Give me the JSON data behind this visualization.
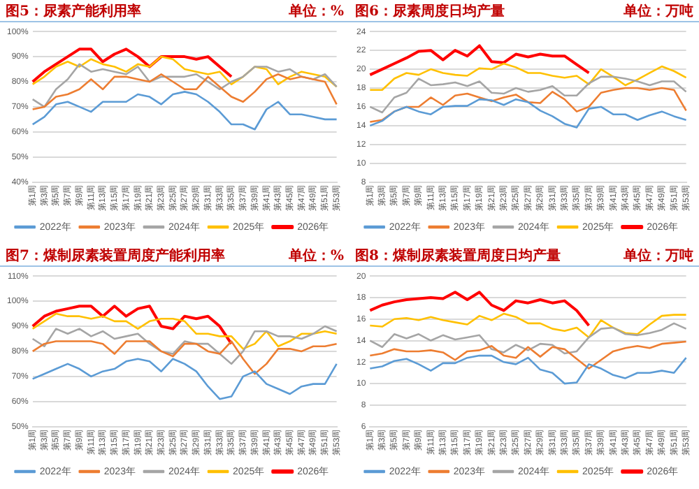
{
  "chart_data": [
    {
      "type": "line",
      "title": "图5：尿素产能利用率",
      "subtitle": "单位：%",
      "categories": [
        "第1周",
        "第3周",
        "第5周",
        "第7周",
        "第9周",
        "第11周",
        "第13周",
        "第15周",
        "第17周",
        "第19周",
        "第21周",
        "第23周",
        "第25周",
        "第27周",
        "第29周",
        "第31周",
        "第33周",
        "第35周",
        "第37周",
        "第39周",
        "第41周",
        "第43周",
        "第45周",
        "第47周",
        "第49周",
        "第51周",
        "第53周"
      ],
      "series": [
        {
          "name": "2022年",
          "color": "#5b9bd5",
          "values": [
            63,
            66,
            71,
            72,
            70,
            68,
            72,
            72,
            72,
            75,
            74,
            71,
            75,
            76,
            75,
            72,
            68,
            63,
            63,
            61,
            69,
            72,
            67,
            67,
            66,
            65,
            65
          ]
        },
        {
          "name": "2023年",
          "color": "#ed7d31",
          "values": [
            69,
            70,
            74,
            75,
            77,
            81,
            77,
            82,
            82,
            81,
            80,
            83,
            80,
            77,
            77,
            82,
            78,
            74,
            72,
            76,
            81,
            83,
            81,
            82,
            81,
            80,
            71
          ]
        },
        {
          "name": "2024年",
          "color": "#a5a5a5",
          "values": [
            73,
            70,
            77,
            81,
            87,
            84,
            85,
            84,
            83,
            86,
            80,
            82,
            82,
            82,
            83,
            80,
            77,
            80,
            82,
            86,
            86,
            84,
            85,
            82,
            81,
            83,
            78
          ]
        },
        {
          "name": "2025年",
          "color": "#ffc000",
          "values": [
            79,
            82,
            86,
            88,
            86,
            89,
            87,
            86,
            84,
            87,
            86,
            90,
            89,
            85,
            84,
            83,
            84,
            79,
            82,
            86,
            85,
            79,
            82,
            84,
            83,
            82,
            78
          ]
        },
        {
          "name": "2026年",
          "color": "#ff0000",
          "values": [
            80,
            84,
            87,
            90,
            93,
            93,
            88,
            91,
            93,
            90,
            86,
            90,
            90,
            90,
            89,
            90,
            86,
            82,
            null,
            null,
            null,
            null,
            null,
            null,
            null,
            null,
            null
          ]
        }
      ],
      "ylim": [
        40,
        100
      ],
      "yticks": [
        {
          "value": 40,
          "label": "40%"
        },
        {
          "value": 50,
          "label": "50%"
        },
        {
          "value": 60,
          "label": "60%"
        },
        {
          "value": 70,
          "label": "70%"
        },
        {
          "value": 80,
          "label": "80%"
        },
        {
          "value": 90,
          "label": "90%"
        },
        {
          "value": 100,
          "label": "100%"
        }
      ],
      "grid": "y",
      "legend": "bottom",
      "marker": "none",
      "line_style": "solid"
    },
    {
      "type": "line",
      "title": "图6：尿素周度日均产量",
      "subtitle": "单位：万吨",
      "categories": [
        "第1周",
        "第3周",
        "第5周",
        "第7周",
        "第9周",
        "第11周",
        "第13周",
        "第15周",
        "第17周",
        "第19周",
        "第21周",
        "第23周",
        "第25周",
        "第27周",
        "第29周",
        "第31周",
        "第33周",
        "第35周",
        "第37周",
        "第39周",
        "第41周",
        "第43周",
        "第45周",
        "第47周",
        "第49周",
        "第51周",
        "第53周"
      ],
      "series": [
        {
          "name": "2022年",
          "color": "#5b9bd5",
          "values": [
            14,
            14.5,
            15.5,
            16,
            15.5,
            15.2,
            16,
            16.1,
            16.1,
            16.8,
            16.7,
            16.2,
            16.8,
            16.5,
            15.6,
            15,
            14.2,
            13.8,
            15.8,
            16,
            15.2,
            15.2,
            14.6,
            15.1,
            15.5,
            15,
            14.6
          ]
        },
        {
          "name": "2023年",
          "color": "#ed7d31",
          "values": [
            14.4,
            14.6,
            15.5,
            16,
            16,
            17,
            16.2,
            17.2,
            17.4,
            17,
            16.6,
            17,
            17.3,
            16.5,
            16.4,
            17.6,
            16.8,
            15.5,
            16,
            17.5,
            17.8,
            18,
            18,
            17.8,
            18,
            17.8,
            15.6
          ]
        },
        {
          "name": "2024年",
          "color": "#a5a5a5",
          "values": [
            16,
            15.4,
            17,
            17.5,
            19,
            18.3,
            18.4,
            18.6,
            18.2,
            18.7,
            17.5,
            17.4,
            18,
            17.6,
            17.8,
            18.2,
            17.2,
            17.2,
            18.5,
            19.2,
            19.2,
            19,
            18.7,
            18.3,
            18.7,
            18.7,
            17.6
          ]
        },
        {
          "name": "2025年",
          "color": "#ffc000",
          "values": [
            17.8,
            17.8,
            19,
            19.6,
            19.4,
            20,
            19.6,
            19.4,
            19.3,
            20.1,
            20,
            20.6,
            20.2,
            19.6,
            19.6,
            19.3,
            19.1,
            19.3,
            18.4,
            20,
            19.2,
            18.3,
            18.9,
            19.6,
            20.3,
            19.8,
            19.1
          ]
        },
        {
          "name": "2026年",
          "color": "#ff0000",
          "values": [
            19.4,
            20,
            20.6,
            21.2,
            21.9,
            22,
            21,
            22,
            21.4,
            22.5,
            20.8,
            20.7,
            21.6,
            21.3,
            21.6,
            21.4,
            21.4,
            20.5,
            19.6,
            null,
            null,
            null,
            null,
            null,
            null,
            null,
            null
          ]
        }
      ],
      "ylim": [
        8,
        24
      ],
      "yticks": [
        8,
        10,
        12,
        14,
        16,
        18,
        20,
        22,
        24
      ],
      "grid": "y",
      "legend": "bottom",
      "marker": "none",
      "line_style": "solid"
    },
    {
      "type": "line",
      "title": "图7：煤制尿素装置周度产能利用率",
      "subtitle": "单位：%",
      "categories": [
        "第1周",
        "第3周",
        "第5周",
        "第7周",
        "第9周",
        "第11周",
        "第13周",
        "第15周",
        "第17周",
        "第19周",
        "第21周",
        "第23周",
        "第25周",
        "第27周",
        "第29周",
        "第31周",
        "第33周",
        "第35周",
        "第37周",
        "第39周",
        "第41周",
        "第43周",
        "第45周",
        "第47周",
        "第49周",
        "第51周",
        "第53周"
      ],
      "series": [
        {
          "name": "2022年",
          "color": "#5b9bd5",
          "values": [
            69,
            71,
            73,
            75,
            73,
            70,
            72,
            73,
            76,
            77,
            76,
            72,
            77,
            75,
            72,
            66,
            61,
            62,
            70,
            72,
            67,
            65,
            63,
            66,
            67,
            67,
            75
          ]
        },
        {
          "name": "2023年",
          "color": "#ed7d31",
          "values": [
            80,
            83,
            84,
            84,
            84,
            84,
            83,
            79,
            84,
            84,
            84,
            80,
            78,
            83,
            83,
            80,
            79,
            84,
            77,
            71,
            75,
            81,
            81,
            80,
            82,
            82,
            83
          ]
        },
        {
          "name": "2024年",
          "color": "#a5a5a5",
          "values": [
            85,
            82,
            89,
            87,
            89,
            86,
            88,
            85,
            86,
            87,
            83,
            80,
            79,
            84,
            83,
            83,
            79,
            75,
            80,
            88,
            88,
            86,
            86,
            85,
            87,
            90,
            88
          ]
        },
        {
          "name": "2025年",
          "color": "#ffc000",
          "values": [
            89,
            92,
            95,
            94,
            94,
            93,
            94,
            92,
            92,
            89,
            92,
            93,
            93,
            92,
            87,
            87,
            86,
            86,
            81,
            83,
            88,
            82,
            84,
            87,
            87,
            88,
            87
          ]
        },
        {
          "name": "2026年",
          "color": "#ff0000",
          "values": [
            90,
            94,
            96,
            97,
            98,
            98,
            94,
            98,
            94,
            97,
            98,
            90,
            89,
            94,
            93,
            94,
            90,
            83,
            null,
            null,
            null,
            null,
            null,
            null,
            null,
            null,
            null
          ]
        }
      ],
      "ylim": [
        50,
        110
      ],
      "yticks": [
        {
          "value": 50,
          "label": "50%"
        },
        {
          "value": 60,
          "label": "60%"
        },
        {
          "value": 70,
          "label": "70%"
        },
        {
          "value": 80,
          "label": "80%"
        },
        {
          "value": 90,
          "label": "90%"
        },
        {
          "value": 100,
          "label": "100%"
        },
        {
          "value": 110,
          "label": "110%"
        }
      ],
      "grid": "y",
      "legend": "bottom",
      "marker": "none",
      "line_style": "solid"
    },
    {
      "type": "line",
      "title": "图8：煤制尿素装置周度日均产量",
      "subtitle": "单位：万吨",
      "categories": [
        "第1周",
        "第3周",
        "第5周",
        "第7周",
        "第9周",
        "第11周",
        "第13周",
        "第15周",
        "第17周",
        "第19周",
        "第21周",
        "第23周",
        "第25周",
        "第27周",
        "第29周",
        "第31周",
        "第33周",
        "第35周",
        "第37周",
        "第39周",
        "第41周",
        "第43周",
        "第45周",
        "第47周",
        "第49周",
        "第51周",
        "第53周"
      ],
      "series": [
        {
          "name": "2022年",
          "color": "#5b9bd5",
          "values": [
            11.4,
            11.6,
            12.1,
            12.3,
            11.8,
            11.2,
            11.9,
            11.9,
            12.4,
            12.6,
            12.6,
            12,
            11.8,
            12.4,
            11.3,
            11,
            10,
            10.1,
            11.8,
            11.4,
            10.8,
            10.5,
            11,
            11,
            11.2,
            11,
            12.4
          ]
        },
        {
          "name": "2023年",
          "color": "#ed7d31",
          "values": [
            12.6,
            12.8,
            13.2,
            13,
            13,
            13.1,
            12.9,
            12.2,
            13,
            13.1,
            13.5,
            12.6,
            12.4,
            13.4,
            12.5,
            13.4,
            13.2,
            12.3,
            11.4,
            12.2,
            13,
            13.3,
            13.5,
            13.3,
            13.7,
            13.8,
            13.9
          ]
        },
        {
          "name": "2024年",
          "color": "#a5a5a5",
          "values": [
            14,
            13.4,
            14.6,
            14.2,
            14.6,
            14,
            14.5,
            14.1,
            14.3,
            14.5,
            13.2,
            12.9,
            13.6,
            13.1,
            13.7,
            13.6,
            12.8,
            13,
            14.3,
            15.1,
            15.2,
            14.6,
            14.5,
            14.7,
            15,
            15.6,
            15.1
          ]
        },
        {
          "name": "2025年",
          "color": "#ffc000",
          "values": [
            15.4,
            15.3,
            16,
            16.1,
            15.9,
            16.2,
            15.9,
            15.7,
            15.5,
            16.3,
            15.9,
            16.5,
            16.2,
            15.6,
            15.6,
            15.1,
            14.9,
            15.2,
            14.3,
            15.9,
            15.2,
            14.7,
            14.6,
            15.5,
            16.3,
            16.4,
            16.4
          ]
        },
        {
          "name": "2026年",
          "color": "#ff0000",
          "values": [
            16.8,
            17.3,
            17.6,
            17.8,
            17.9,
            18,
            17.9,
            18.5,
            17.8,
            18.5,
            17.3,
            16.8,
            17.7,
            17.5,
            17.8,
            17.5,
            17.7,
            16.8,
            15.4,
            null,
            null,
            null,
            null,
            null,
            null,
            null,
            null
          ]
        }
      ],
      "ylim": [
        6,
        20
      ],
      "yticks": [
        6,
        8,
        10,
        12,
        14,
        16,
        18,
        20
      ],
      "grid": "y",
      "legend": "bottom",
      "marker": "none",
      "line_style": "solid"
    }
  ]
}
